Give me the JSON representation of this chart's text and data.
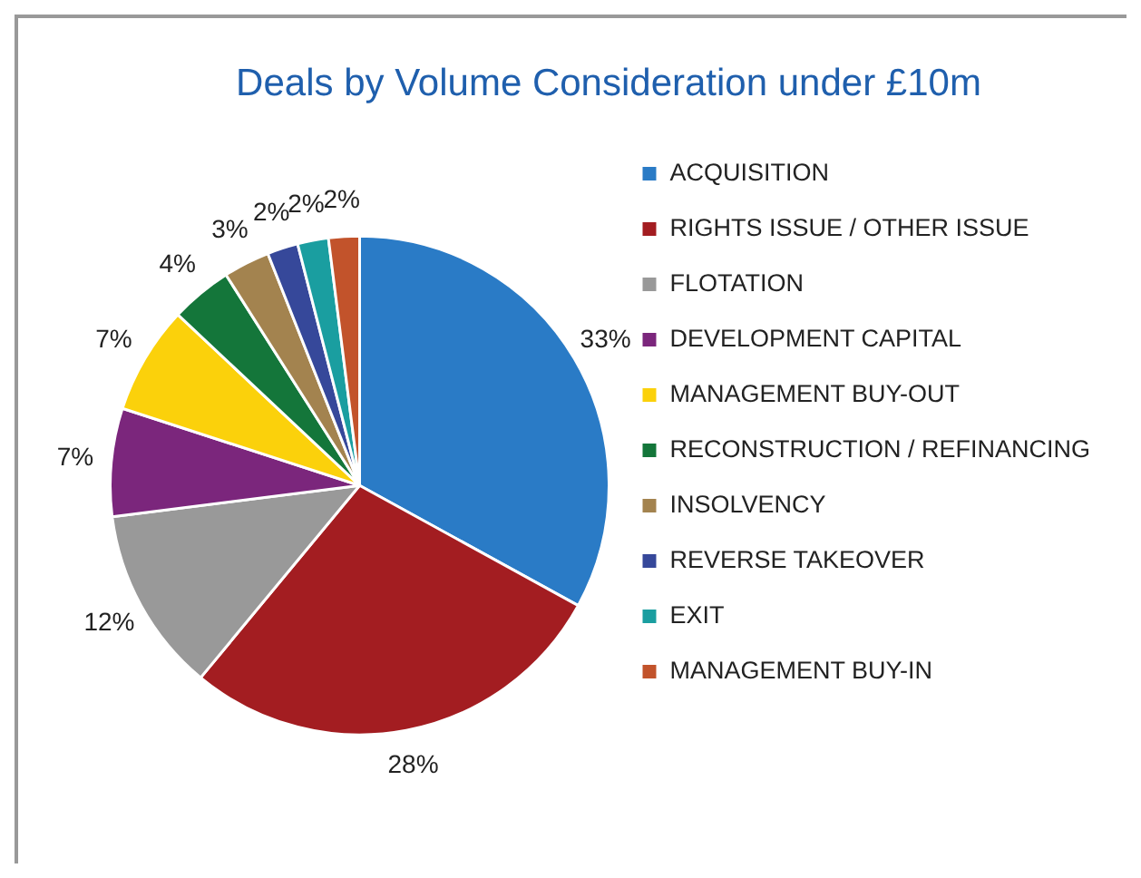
{
  "chart_data": {
    "type": "pie",
    "title": "Deals by Volume Consideration under £10m",
    "categories": [
      "ACQUISITION",
      "RIGHTS ISSUE / OTHER ISSUE",
      "FLOTATION",
      "DEVELOPMENT CAPITAL",
      "MANAGEMENT BUY-OUT",
      "RECONSTRUCTION / REFINANCING",
      "INSOLVENCY",
      "REVERSE TAKEOVER",
      "EXIT",
      "MANAGEMENT BUY-IN"
    ],
    "values": [
      33,
      28,
      12,
      7,
      7,
      4,
      3,
      2,
      2,
      2
    ],
    "value_labels": [
      "33%",
      "28%",
      "12%",
      "7%",
      "7%",
      "4%",
      "3%",
      "2%",
      "2%",
      "2%"
    ],
    "colors": [
      "#2a7bc6",
      "#a31d21",
      "#999999",
      "#7b267c",
      "#fbd10b",
      "#14763a",
      "#a3834f",
      "#36489a",
      "#1a9ea0",
      "#c2532b"
    ],
    "legend": "right"
  }
}
